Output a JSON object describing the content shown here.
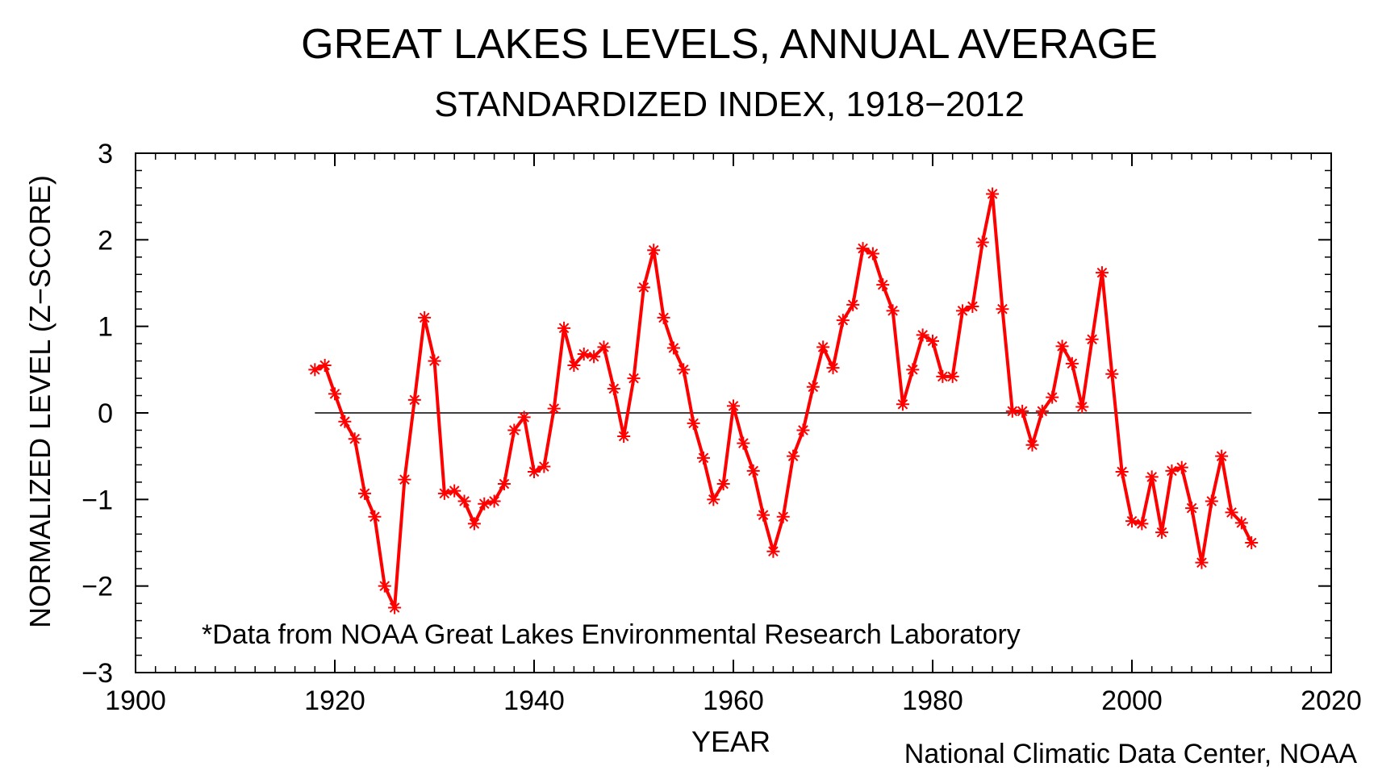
{
  "chart_data": {
    "type": "line",
    "title": "GREAT LAKES LEVELS, ANNUAL AVERAGE",
    "subtitle": "STANDARDIZED INDEX, 1918−2012",
    "xlabel": "YEAR",
    "ylabel": "NORMALIZED LEVEL (Z−SCORE)",
    "xlim": [
      1900,
      2020
    ],
    "ylim": [
      -3,
      3
    ],
    "x_ticks": [
      1900,
      1920,
      1940,
      1960,
      1980,
      2000,
      2020
    ],
    "y_ticks": [
      -3,
      -2,
      -1,
      0,
      1,
      2,
      3
    ],
    "x_tick_labels": [
      "1900",
      "1920",
      "1940",
      "1960",
      "1980",
      "2000",
      "2020"
    ],
    "y_tick_labels": [
      "−3",
      "−2",
      "−1",
      "0",
      "1",
      "2",
      "3"
    ],
    "grid": false,
    "reference_line": {
      "y": 0,
      "x_start": 1918,
      "x_end": 2012
    },
    "annotation": "*Data from NOAA Great Lakes Environmental Research Laboratory",
    "source": "National Climatic Data Center, NOAA",
    "series": [
      {
        "name": "Great Lakes annual average level (z-score)",
        "color": "#ff0000",
        "marker": "asterisk",
        "x": [
          1918,
          1919,
          1920,
          1921,
          1922,
          1923,
          1924,
          1925,
          1926,
          1927,
          1928,
          1929,
          1930,
          1931,
          1932,
          1933,
          1934,
          1935,
          1936,
          1937,
          1938,
          1939,
          1940,
          1941,
          1942,
          1943,
          1944,
          1945,
          1946,
          1947,
          1948,
          1949,
          1950,
          1951,
          1952,
          1953,
          1954,
          1955,
          1956,
          1957,
          1958,
          1959,
          1960,
          1961,
          1962,
          1963,
          1964,
          1965,
          1966,
          1967,
          1968,
          1969,
          1970,
          1971,
          1972,
          1973,
          1974,
          1975,
          1976,
          1977,
          1978,
          1979,
          1980,
          1981,
          1982,
          1983,
          1984,
          1985,
          1986,
          1987,
          1988,
          1989,
          1990,
          1991,
          1992,
          1993,
          1994,
          1995,
          1996,
          1997,
          1998,
          1999,
          2000,
          2001,
          2002,
          2003,
          2004,
          2005,
          2006,
          2007,
          2008,
          2009,
          2010,
          2011,
          2012
        ],
        "values": [
          0.5,
          0.55,
          0.22,
          -0.1,
          -0.3,
          -0.93,
          -1.2,
          -2.0,
          -2.25,
          -0.77,
          0.15,
          1.1,
          0.6,
          -0.93,
          -0.9,
          -1.02,
          -1.28,
          -1.05,
          -1.02,
          -0.82,
          -0.2,
          -0.05,
          -0.68,
          -0.62,
          0.05,
          0.98,
          0.55,
          0.68,
          0.65,
          0.76,
          0.28,
          -0.27,
          0.4,
          1.45,
          1.88,
          1.1,
          0.75,
          0.5,
          -0.12,
          -0.52,
          -1.0,
          -0.82,
          0.08,
          -0.35,
          -0.67,
          -1.18,
          -1.6,
          -1.2,
          -0.5,
          -0.2,
          0.3,
          0.76,
          0.52,
          1.07,
          1.25,
          1.9,
          1.84,
          1.48,
          1.18,
          0.1,
          0.5,
          0.9,
          0.83,
          0.42,
          0.42,
          1.18,
          1.23,
          1.97,
          2.53,
          1.2,
          0.02,
          0.02,
          -0.37,
          0.02,
          0.18,
          0.77,
          0.57,
          0.07,
          0.85,
          1.62,
          0.45,
          -0.68,
          -1.25,
          -1.28,
          -0.74,
          -1.38,
          -0.67,
          -0.63,
          -1.1,
          -1.73,
          -1.02,
          -0.5,
          -1.15,
          -1.27,
          -1.5
        ]
      }
    ]
  }
}
